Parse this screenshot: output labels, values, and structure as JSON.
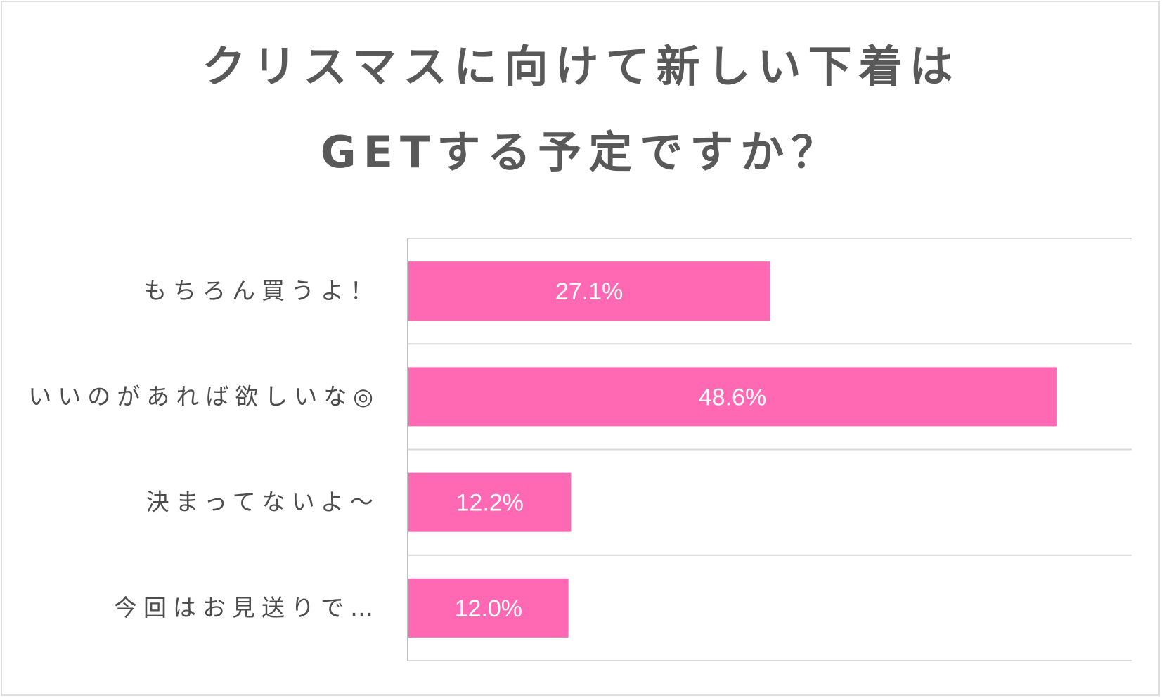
{
  "title": {
    "line1": "クリスマスに向けて新しい下着は",
    "line2": "GETする予定ですか？"
  },
  "colors": {
    "bar": "#ff69b4",
    "grid": "#d9d9d9",
    "axis": "#bfbfbf",
    "title": "#595959",
    "label": "#4d4d4d"
  },
  "chart_data": {
    "type": "bar",
    "orientation": "horizontal",
    "title": "クリスマスに向けて新しい下着はGETする予定ですか？",
    "categories": [
      "もちろん買うよ！",
      "いいのがあれば欲しいな◎",
      "決まってないよ〜",
      "今回はお見送りで…"
    ],
    "values": [
      27.1,
      48.6,
      12.2,
      12.0
    ],
    "value_labels": [
      "27.1%",
      "48.6%",
      "12.2%",
      "12.0%"
    ],
    "xlim": [
      0,
      60
    ],
    "xlabel": "",
    "ylabel": "",
    "grid": true,
    "legend": "none"
  }
}
